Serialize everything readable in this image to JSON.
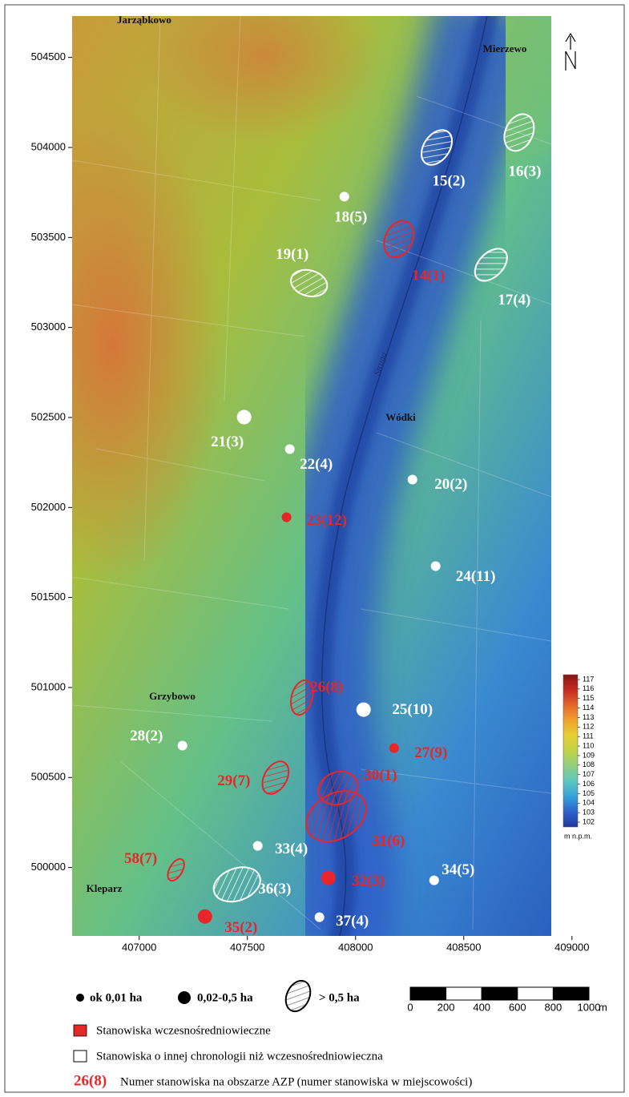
{
  "axes": {
    "xlim": [
      406690,
      409060
    ],
    "ylim": [
      499620,
      504730
    ],
    "xticks": [
      407000,
      407500,
      408000,
      408500,
      409000
    ],
    "yticks": [
      500000,
      500500,
      501000,
      501500,
      502000,
      502500,
      503000,
      503500,
      504000,
      504500
    ]
  },
  "places": [
    "Jarząbkowo",
    "Mierzewo",
    "Wódki",
    "Grzybowo",
    "Kleparz"
  ],
  "river": "Struga",
  "colors": {
    "early": "#e8262a",
    "other": "#ffffff"
  },
  "sites": [
    {
      "label": "15(2)",
      "x": 408375,
      "y": 504000,
      "kind": "area",
      "period": "other"
    },
    {
      "label": "16(3)",
      "x": 408756,
      "y": 504083,
      "kind": "area",
      "period": "other"
    },
    {
      "label": "18(5)",
      "x": 407948,
      "y": 503727,
      "kind": "small",
      "period": "other"
    },
    {
      "label": "14(1)",
      "x": 408200,
      "y": 503491,
      "kind": "area",
      "period": "early"
    },
    {
      "label": "19(1)",
      "x": 407785,
      "y": 503246,
      "kind": "area",
      "period": "other"
    },
    {
      "label": "17(4)",
      "x": 408626,
      "y": 503348,
      "kind": "area",
      "period": "other"
    },
    {
      "label": "21(3)",
      "x": 407485,
      "y": 502502,
      "kind": "large",
      "period": "other"
    },
    {
      "label": "22(4)",
      "x": 407696,
      "y": 502324,
      "kind": "small",
      "period": "other"
    },
    {
      "label": "20(2)",
      "x": 408263,
      "y": 502155,
      "kind": "small",
      "period": "other"
    },
    {
      "label": "23(12)",
      "x": 407681,
      "y": 501946,
      "kind": "small",
      "period": "early"
    },
    {
      "label": "24(11)",
      "x": 408370,
      "y": 501674,
      "kind": "small",
      "period": "other"
    },
    {
      "label": "26(8)",
      "x": 407752,
      "y": 500944,
      "kind": "area",
      "period": "early"
    },
    {
      "label": "25(10)",
      "x": 408037,
      "y": 500877,
      "kind": "large",
      "period": "other"
    },
    {
      "label": "28(2)",
      "x": 407200,
      "y": 500677,
      "kind": "small",
      "period": "other"
    },
    {
      "label": "27(9)",
      "x": 408178,
      "y": 500663,
      "kind": "small",
      "period": "early"
    },
    {
      "label": "29(7)",
      "x": 407630,
      "y": 500499,
      "kind": "area",
      "period": "early"
    },
    {
      "label": "30(1)",
      "x": 407919,
      "y": 500441,
      "kind": "area",
      "period": "early"
    },
    {
      "label": "31(6)",
      "x": 407911,
      "y": 500285,
      "kind": "area",
      "period": "early"
    },
    {
      "label": "33(4)",
      "x": 407548,
      "y": 500120,
      "kind": "small",
      "period": "other"
    },
    {
      "label": "58(7)",
      "x": 407170,
      "y": 499987,
      "kind": "area",
      "period": "early"
    },
    {
      "label": "36(3)",
      "x": 407452,
      "y": 499906,
      "kind": "area",
      "period": "other"
    },
    {
      "label": "32(3)",
      "x": 407874,
      "y": 499942,
      "kind": "large",
      "period": "early"
    },
    {
      "label": "34(5)",
      "x": 408363,
      "y": 499929,
      "kind": "small",
      "period": "other"
    },
    {
      "label": "35(2)",
      "x": 407304,
      "y": 499728,
      "kind": "large",
      "period": "early"
    },
    {
      "label": "37(4)",
      "x": 407833,
      "y": 499724,
      "kind": "small",
      "period": "other"
    }
  ],
  "colorbar": {
    "ticks": [
      102,
      103,
      104,
      105,
      106,
      107,
      108,
      109,
      110,
      111,
      112,
      113,
      114,
      115,
      116,
      117
    ],
    "unit": "m n.p.m.",
    "colors": [
      "#2238a0",
      "#2d62cc",
      "#36a2dc",
      "#5cc8c0",
      "#8fcf80",
      "#c0d244",
      "#e6cf34",
      "#f0a32e",
      "#e5662a",
      "#c42a20",
      "#8c1212"
    ]
  },
  "scalebar": {
    "ticks": [
      0,
      200,
      400,
      600,
      800,
      1000
    ],
    "unit": "m"
  },
  "legend": {
    "sizes": [
      "ok 0,01 ha",
      "0,02-0,5 ha",
      "> 0,5 ha"
    ],
    "periods": [
      "Stanowiska wczesnośredniowieczne",
      "Stanowiska o innej chronologii niż wczesnośredniowieczna"
    ],
    "example": "26(8)",
    "example_text": "Numer stanowiska na obszarze AZP (numer stanowiska w miejscowości)"
  }
}
